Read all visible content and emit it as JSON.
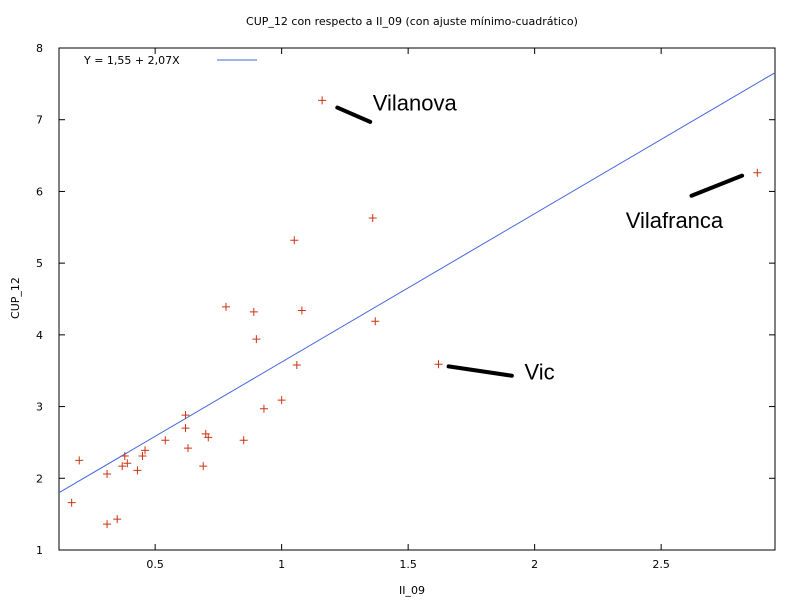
{
  "chart_data": {
    "type": "scatter",
    "title": "CUP_12 con respecto a II_09 (con ajuste mínimo-cuadrático)",
    "xlabel": "II_09",
    "ylabel": "CUP_12",
    "xlim": [
      0.12,
      2.95
    ],
    "ylim": [
      1,
      8
    ],
    "x_ticks": [
      0.5,
      1,
      1.5,
      2,
      2.5
    ],
    "x_tick_labels": [
      "0.5",
      "1",
      "1.5",
      "2",
      "2.5"
    ],
    "y_ticks": [
      1,
      2,
      3,
      4,
      5,
      6,
      7,
      8
    ],
    "y_tick_labels": [
      "1",
      "2",
      "3",
      "4",
      "5",
      "6",
      "7",
      "8"
    ],
    "grid": false,
    "legend": {
      "position": "top-left",
      "entries": [
        {
          "label": "Y = 1,55 + 2,07X",
          "color": "#4466dd"
        }
      ]
    },
    "fit": {
      "intercept": 1.55,
      "slope": 2.07,
      "color": "#4466dd"
    },
    "point_color": "#cc3311",
    "points": [
      [
        0.17,
        1.66
      ],
      [
        0.2,
        2.25
      ],
      [
        0.31,
        1.36
      ],
      [
        0.31,
        2.06
      ],
      [
        0.35,
        1.43
      ],
      [
        0.37,
        2.17
      ],
      [
        0.38,
        2.31
      ],
      [
        0.39,
        2.21
      ],
      [
        0.43,
        2.11
      ],
      [
        0.45,
        2.31
      ],
      [
        0.46,
        2.39
      ],
      [
        0.54,
        2.53
      ],
      [
        0.62,
        2.88
      ],
      [
        0.62,
        2.7
      ],
      [
        0.63,
        2.42
      ],
      [
        0.69,
        2.17
      ],
      [
        0.7,
        2.62
      ],
      [
        0.71,
        2.57
      ],
      [
        0.78,
        4.39
      ],
      [
        0.85,
        2.53
      ],
      [
        0.89,
        4.32
      ],
      [
        0.9,
        3.94
      ],
      [
        0.93,
        2.97
      ],
      [
        1.0,
        3.09
      ],
      [
        1.05,
        5.32
      ],
      [
        1.06,
        3.58
      ],
      [
        1.08,
        4.34
      ],
      [
        1.16,
        7.27
      ],
      [
        1.36,
        5.63
      ],
      [
        1.37,
        4.19
      ],
      [
        1.62,
        3.59
      ],
      [
        2.88,
        6.26
      ]
    ],
    "annotations": [
      {
        "text": "Vilanova",
        "x": 1.36,
        "y": 7.13,
        "from": [
          1.22,
          7.17
        ],
        "to": [
          1.35,
          6.97
        ]
      },
      {
        "text": "Vilafranca",
        "x": 2.36,
        "y": 5.49,
        "from": [
          2.62,
          5.94
        ],
        "to": [
          2.82,
          6.22
        ]
      },
      {
        "text": "Vic",
        "x": 1.96,
        "y": 3.38,
        "from": [
          1.66,
          3.56
        ],
        "to": [
          1.91,
          3.43
        ]
      }
    ]
  }
}
